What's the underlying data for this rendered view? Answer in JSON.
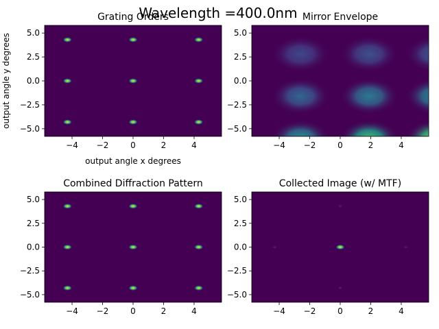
{
  "figure": {
    "suptitle": "Wavelength =400.0nm"
  },
  "chart_data": [
    {
      "type": "heatmap",
      "title": "Grating Orders",
      "xlabel": "output angle x degrees",
      "ylabel": "output angle y degrees",
      "xlim": [
        -5.8,
        5.8
      ],
      "ylim": [
        -5.8,
        5.8
      ],
      "xticks": [
        "−4",
        "−2",
        "0",
        "2",
        "4"
      ],
      "yticks": [
        "5.0",
        "2.5",
        "0.0",
        "−2.5",
        "−5.0"
      ],
      "colormap": "viridis",
      "background": "#440154",
      "spots": [
        {
          "x": -4.3,
          "y": 4.3,
          "v": 1.0
        },
        {
          "x": 0,
          "y": 4.3,
          "v": 1.0
        },
        {
          "x": 4.3,
          "y": 4.3,
          "v": 1.0
        },
        {
          "x": -4.3,
          "y": 0,
          "v": 1.0
        },
        {
          "x": 0,
          "y": 0,
          "v": 1.0
        },
        {
          "x": 4.3,
          "y": 0,
          "v": 1.0
        },
        {
          "x": -4.3,
          "y": -4.3,
          "v": 1.0
        },
        {
          "x": 0,
          "y": -4.3,
          "v": 1.0
        },
        {
          "x": 4.3,
          "y": -4.3,
          "v": 1.0
        }
      ]
    },
    {
      "type": "heatmap",
      "title": "Mirror Envelope",
      "xlabel": "",
      "ylabel": "",
      "xlim": [
        -5.8,
        5.8
      ],
      "ylim": [
        -5.8,
        5.8
      ],
      "xticks": [
        "−4",
        "−2",
        "0",
        "2",
        "4"
      ],
      "yticks": [
        "5.0",
        "2.5",
        "0.0",
        "−2.5",
        "−5.0"
      ],
      "colormap": "viridis",
      "background": "#440154",
      "blobs": [
        {
          "x": -2.6,
          "y": 2.8,
          "v": 0.22
        },
        {
          "x": 1.9,
          "y": 2.8,
          "v": 0.25
        },
        {
          "x": 6.2,
          "y": 2.8,
          "v": 0.28
        },
        {
          "x": -2.6,
          "y": -1.6,
          "v": 0.33
        },
        {
          "x": 1.9,
          "y": -1.6,
          "v": 0.42
        },
        {
          "x": 6.2,
          "y": -1.6,
          "v": 0.48
        },
        {
          "x": -2.6,
          "y": -6.0,
          "v": 0.5
        },
        {
          "x": 1.9,
          "y": -6.0,
          "v": 0.7
        },
        {
          "x": 6.2,
          "y": -6.0,
          "v": 0.85
        }
      ]
    },
    {
      "type": "heatmap",
      "title": "Combined Diffraction Pattern",
      "xlabel": "",
      "ylabel": "",
      "xlim": [
        -5.8,
        5.8
      ],
      "ylim": [
        -5.8,
        5.8
      ],
      "xticks": [
        "−4",
        "−2",
        "0",
        "2",
        "4"
      ],
      "yticks": [
        "5.0",
        "2.5",
        "0.0",
        "−2.5",
        "−5.0"
      ],
      "colormap": "viridis",
      "background": "#440154",
      "spots": [
        {
          "x": -4.3,
          "y": 4.3,
          "v": 1.0
        },
        {
          "x": 0,
          "y": 4.3,
          "v": 1.0
        },
        {
          "x": 4.3,
          "y": 4.3,
          "v": 1.0
        },
        {
          "x": -4.3,
          "y": 0,
          "v": 1.0
        },
        {
          "x": 0,
          "y": 0,
          "v": 1.0
        },
        {
          "x": 4.3,
          "y": 0,
          "v": 1.0
        },
        {
          "x": -4.3,
          "y": -4.3,
          "v": 1.0
        },
        {
          "x": 0,
          "y": -4.3,
          "v": 1.0
        },
        {
          "x": 4.3,
          "y": -4.3,
          "v": 1.0
        }
      ]
    },
    {
      "type": "heatmap",
      "title": "Collected Image (w/ MTF)",
      "xlabel": "",
      "ylabel": "",
      "xlim": [
        -5.8,
        5.8
      ],
      "ylim": [
        -5.8,
        5.8
      ],
      "xticks": [
        "−4",
        "−2",
        "0",
        "2",
        "4"
      ],
      "yticks": [
        "5.0",
        "2.5",
        "0.0",
        "−2.5",
        "−5.0"
      ],
      "colormap": "viridis",
      "background": "#440154",
      "spots": [
        {
          "x": 0,
          "y": 0,
          "v": 1.0
        },
        {
          "x": -4.3,
          "y": 0,
          "v": 0.06
        },
        {
          "x": 4.3,
          "y": 0,
          "v": 0.06
        },
        {
          "x": 0,
          "y": 4.3,
          "v": 0.06
        },
        {
          "x": 0,
          "y": -4.3,
          "v": 0.06
        }
      ]
    }
  ]
}
